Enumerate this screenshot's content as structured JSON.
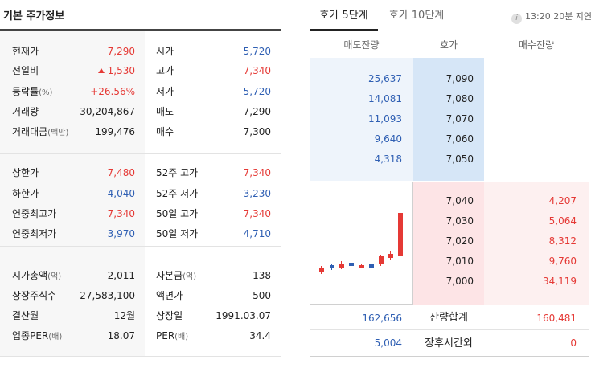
{
  "left": {
    "title": "기본 주가정보",
    "rows": [
      {
        "l1": "현재가",
        "v1": "7,290",
        "c1": "red",
        "l2": "시가",
        "v2": "5,720",
        "c2": "blue"
      },
      {
        "l1": "전일비",
        "v1": "1,530",
        "c1": "red",
        "arrow": true,
        "l2": "고가",
        "v2": "7,340",
        "c2": "red"
      },
      {
        "l1": "등락률",
        "l1u": "(%)",
        "v1": "+26.56%",
        "c1": "red",
        "l2": "저가",
        "v2": "5,720",
        "c2": "blue"
      },
      {
        "l1": "거래량",
        "v1": "30,204,867",
        "c1": "",
        "l2": "매도",
        "v2": "7,290",
        "c2": ""
      },
      {
        "l1": "거래대금",
        "l1u": "(백만)",
        "v1": "199,476",
        "c1": "",
        "l2": "매수",
        "v2": "7,300",
        "c2": ""
      },
      {
        "l1": "상한가",
        "v1": "7,480",
        "c1": "red",
        "l2": "52주 고가",
        "v2": "7,340",
        "c2": "red"
      },
      {
        "l1": "하한가",
        "v1": "4,040",
        "c1": "blue",
        "l2": "52주 저가",
        "v2": "3,230",
        "c2": "blue"
      },
      {
        "l1": "연중최고가",
        "v1": "7,340",
        "c1": "red",
        "l2": "50일 고가",
        "v2": "7,340",
        "c2": "red"
      },
      {
        "l1": "연중최저가",
        "v1": "3,970",
        "c1": "blue",
        "l2": "50일 저가",
        "v2": "4,710",
        "c2": "blue"
      },
      {
        "l1": "시가총액",
        "l1u": "(억)",
        "v1": "2,011",
        "c1": "",
        "l2": "자본금",
        "l2u": "(억)",
        "v2": "138",
        "c2": ""
      },
      {
        "l1": "상장주식수",
        "v1": "27,583,100",
        "c1": "",
        "l2": "액면가",
        "v2": "500",
        "c2": ""
      },
      {
        "l1": "결산월",
        "v1": "12월",
        "c1": "",
        "l2": "상장일",
        "v2": "1991.03.07",
        "c2": ""
      },
      {
        "l1": "업종PER",
        "l1u": "(배)",
        "v1": "18.07",
        "c1": "",
        "l2": "PER",
        "l2u": "(배)",
        "v2": "34.4",
        "c2": ""
      }
    ]
  },
  "right": {
    "tabs": [
      "호가 5단계",
      "호가 10단계"
    ],
    "info_icon": "i",
    "info": "13:20 20분 지연",
    "headers": [
      "매도잔량",
      "호가",
      "매수잔량"
    ],
    "asks": [
      {
        "qty": "25,637",
        "price": "7,090"
      },
      {
        "qty": "14,081",
        "price": "7,080"
      },
      {
        "qty": "11,093",
        "price": "7,070"
      },
      {
        "qty": "9,640",
        "price": "7,060"
      },
      {
        "qty": "4,318",
        "price": "7,050"
      }
    ],
    "bids": [
      {
        "price": "7,040",
        "qty": "4,207"
      },
      {
        "price": "7,030",
        "qty": "5,064"
      },
      {
        "price": "7,020",
        "qty": "8,312"
      },
      {
        "price": "7,010",
        "qty": "9,760"
      },
      {
        "price": "7,000",
        "qty": "34,119"
      }
    ],
    "total": {
      "sell": "162,656",
      "label": "잔량합계",
      "buy": "160,481"
    },
    "afterhours": {
      "sell": "5,004",
      "label": "장후시간외",
      "buy": "0"
    }
  },
  "colors": {
    "up": "#e53935",
    "down": "#2f5fb3"
  }
}
